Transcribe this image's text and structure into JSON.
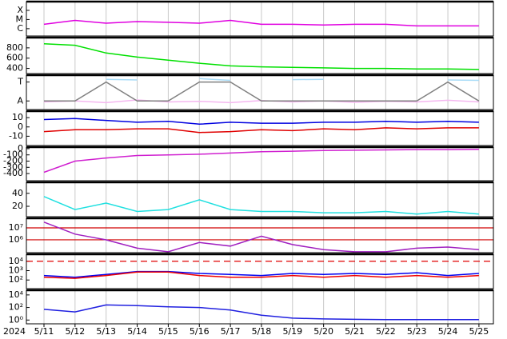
{
  "x_axis": {
    "year": "2024",
    "categories": [
      "5/11",
      "5/12",
      "5/13",
      "5/14",
      "5/15",
      "5/16",
      "5/17",
      "5/18",
      "5/19",
      "5/20",
      "5/21",
      "5/22",
      "5/23",
      "5/24",
      "5/25"
    ]
  },
  "chart_data": [
    {
      "type": "line",
      "log": true,
      "ylim": [
        1.6e-07,
        0.0009
      ],
      "yticks": [
        {
          "value": 0.0001,
          "label": "X"
        },
        {
          "value": 1e-05,
          "label": "M"
        },
        {
          "value": 1e-06,
          "label": "C"
        }
      ],
      "series": [
        {
          "color": "#e000e0",
          "values": [
            3e-06,
            8e-06,
            4e-06,
            6e-06,
            5e-06,
            4e-06,
            8e-06,
            3e-06,
            3e-06,
            2.5e-06,
            3e-06,
            3e-06,
            2e-06,
            2e-06,
            2e-06
          ]
        }
      ]
    },
    {
      "type": "line",
      "ylim": [
        300,
        1000
      ],
      "yticks": [
        800,
        600,
        400
      ],
      "series": [
        {
          "color": "#00e000",
          "values": [
            880,
            850,
            700,
            620,
            560,
            500,
            450,
            430,
            420,
            410,
            400,
            400,
            390,
            390,
            380
          ]
        }
      ]
    },
    {
      "type": "line",
      "ylim": [
        0,
        1
      ],
      "yticks": [
        {
          "value": 0.8,
          "label": "T"
        },
        {
          "value": 0.25,
          "label": "A"
        }
      ],
      "series": [
        {
          "color": "#f4b8f0",
          "values": [
            0.22,
            0.25,
            0.2,
            0.28,
            0.22,
            0.24,
            0.2,
            0.26,
            0.22,
            0.25,
            0.21,
            0.24,
            0.22,
            0.27,
            0.22
          ]
        },
        {
          "color": "#a8dcf8",
          "values": [
            0.85,
            null,
            0.88,
            0.86,
            null,
            0.9,
            0.85,
            null,
            0.87,
            0.88,
            null,
            0.9,
            null,
            0.86,
            0.85
          ]
        },
        {
          "color": "#808080",
          "values": [
            0.25,
            0.25,
            0.8,
            0.25,
            0.25,
            0.8,
            0.8,
            0.25,
            0.25,
            0.25,
            0.25,
            0.25,
            0.25,
            0.8,
            0.25
          ]
        }
      ]
    },
    {
      "type": "line",
      "ylim": [
        -20,
        17
      ],
      "yticks": [
        10,
        0,
        -10
      ],
      "series": [
        {
          "color": "#0000e0",
          "values": [
            8,
            9,
            7,
            5,
            6,
            3,
            5,
            4,
            4,
            5,
            5,
            6,
            5,
            6,
            5
          ]
        },
        {
          "color": "#e00000",
          "values": [
            -5,
            -3,
            -3,
            -2,
            -2,
            -6,
            -5,
            -3,
            -4,
            -2,
            -3,
            -1,
            -2,
            -1,
            -1
          ]
        }
      ]
    },
    {
      "type": "line",
      "ylim": [
        -515,
        25
      ],
      "yticks": [
        0,
        -100,
        -200,
        -300,
        -400
      ],
      "series": [
        {
          "color": "#d020d0",
          "values": [
            -380,
            -200,
            -150,
            -110,
            -100,
            -90,
            -70,
            -50,
            -40,
            -30,
            -25,
            -20,
            -15,
            -15,
            -10
          ]
        }
      ]
    },
    {
      "type": "line",
      "ylim": [
        4,
        57
      ],
      "yticks": [
        40,
        20
      ],
      "series": [
        {
          "color": "#20e0e0",
          "values": [
            35,
            15,
            25,
            12,
            15,
            30,
            15,
            12,
            12,
            10,
            10,
            12,
            8,
            12,
            8
          ]
        }
      ]
    },
    {
      "type": "line",
      "log": true,
      "ylim": [
        85000,
        63000000
      ],
      "yticks": [
        {
          "value": 10000000,
          "label": "10⁷"
        },
        {
          "value": 1000000,
          "label": "10⁶"
        }
      ],
      "hlines": [
        {
          "value": 10000000,
          "color": "#d00000"
        },
        {
          "value": 1000000,
          "color": "#d00000"
        }
      ],
      "series": [
        {
          "color": "#a020c0",
          "values": [
            30000000,
            3000000,
            1000000,
            200000,
            100000,
            600000,
            300000,
            2000000,
            400000,
            150000,
            100000,
            100000,
            200000,
            250000,
            150000
          ]
        }
      ]
    },
    {
      "type": "line",
      "log": true,
      "ylim": [
        12,
        56000
      ],
      "yticks": [
        {
          "value": 10000,
          "label": "10⁴"
        },
        {
          "value": 1000,
          "label": "10³"
        },
        {
          "value": 100,
          "label": "10²"
        }
      ],
      "hlines": [
        {
          "value": 10000,
          "color": "#e00000",
          "dashed": true
        }
      ],
      "series": [
        {
          "color": "#0000f0",
          "values": [
            300,
            200,
            400,
            800,
            800,
            500,
            400,
            300,
            500,
            400,
            500,
            400,
            600,
            300,
            500
          ]
        },
        {
          "color": "#f00000",
          "values": [
            200,
            150,
            300,
            700,
            700,
            300,
            200,
            200,
            300,
            200,
            300,
            200,
            300,
            200,
            300
          ]
        }
      ]
    },
    {
      "type": "line",
      "log": true,
      "ylim": [
        0.25,
        56000
      ],
      "yticks": [
        {
          "value": 10000,
          "label": "10⁴"
        },
        {
          "value": 100,
          "label": "10²"
        },
        {
          "value": 1,
          "label": "10⁰"
        }
      ],
      "series": [
        {
          "color": "#2020e0",
          "values": [
            50,
            20,
            250,
            200,
            130,
            100,
            40,
            6,
            2,
            1.5,
            1.3,
            1.2,
            1.2,
            1.2,
            1.2
          ]
        }
      ]
    }
  ]
}
